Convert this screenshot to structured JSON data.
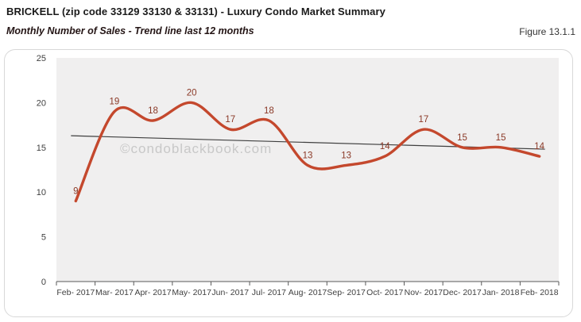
{
  "header": {
    "title": "BRICKELL (zip code 33129 33130 & 33131) - Luxury Condo Market Summary",
    "subtitle": "Monthly Number of Sales - Trend line last 12 months",
    "figure_label": "Figure 13.1.1"
  },
  "watermark": "©condoblackbook.com",
  "chart_data": {
    "type": "line",
    "title": "Monthly Number of Sales - Trend line last 12 months",
    "categories": [
      "Feb- 2017",
      "Mar- 2017",
      "Apr- 2017",
      "May- 2017",
      "Jun- 2017",
      "Jul- 2017",
      "Aug- 2017",
      "Sep- 2017",
      "Oct- 2017",
      "Nov- 2017",
      "Dec- 2017",
      "Jan- 2018",
      "Feb- 2018"
    ],
    "values": [
      9,
      19,
      18,
      20,
      17,
      18,
      13,
      13,
      14,
      17,
      15,
      15,
      14
    ],
    "data_labels": [
      "9",
      "19",
      "18",
      "20",
      "17",
      "18",
      "13",
      "13",
      "14",
      "17",
      "15",
      "15",
      "14"
    ],
    "trend_line": {
      "start": 16.3,
      "end": 14.8,
      "color": "#3f3f3f"
    },
    "xlabel": "",
    "ylabel": "",
    "ylim": [
      0,
      25
    ],
    "yticks": [
      0,
      5,
      10,
      15,
      20,
      25
    ],
    "grid": false,
    "legend": false,
    "smooth": true,
    "series_color": "#c4482d",
    "label_color": "#8a3826",
    "axis_color": "#595959",
    "tick_text_color": "#404040",
    "plot_bg": "#f0efef",
    "watermark_color": "#c8c8c8"
  }
}
